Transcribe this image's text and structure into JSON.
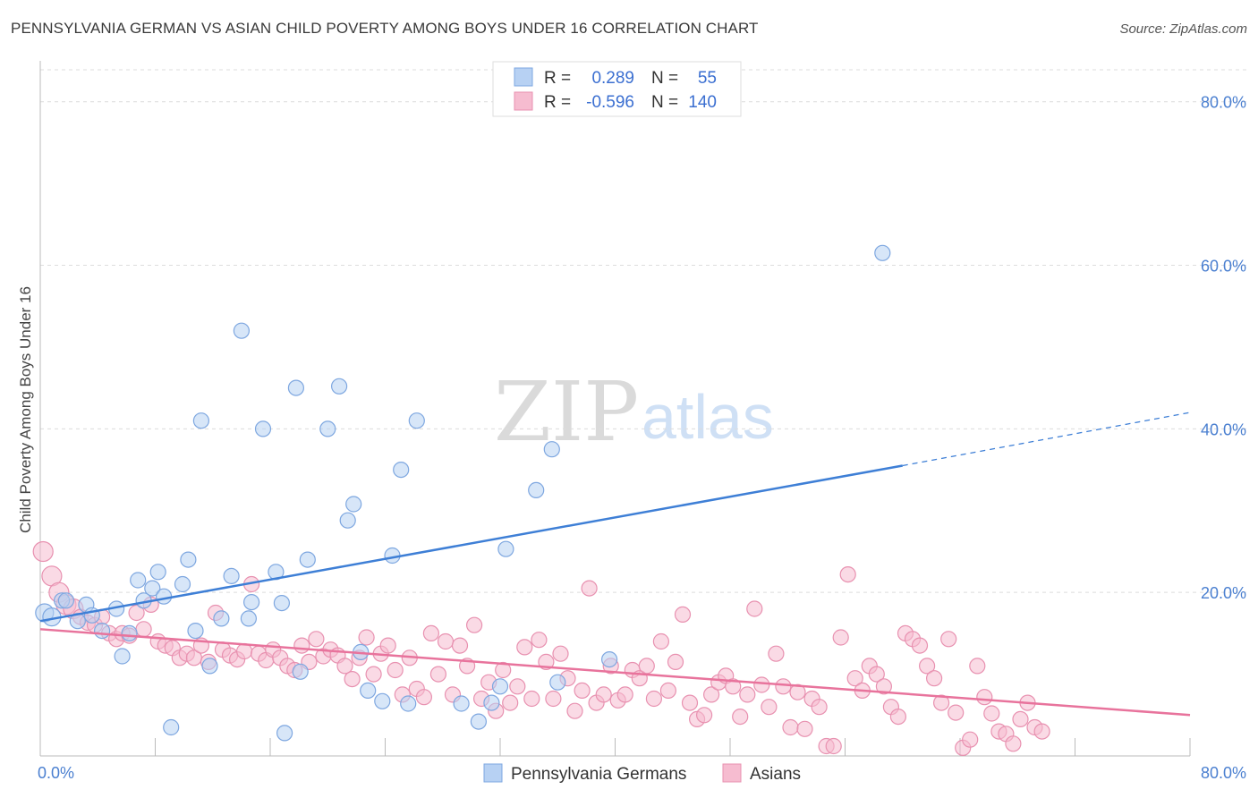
{
  "title": "PENNSYLVANIA GERMAN VS ASIAN CHILD POVERTY AMONG BOYS UNDER 16 CORRELATION CHART",
  "source": "Source: ZipAtlas.com",
  "watermark": {
    "zip": "ZIP",
    "atlas": "atlas"
  },
  "colors": {
    "blue": "#3e7fd6",
    "blue_fill": "#b7d1f3",
    "pink": "#e8739c",
    "pink_fill": "#f6bcd0",
    "tick": "#4a7fd0"
  },
  "legend": {
    "rows": [
      {
        "r_label": "R =",
        "r_value": "0.289",
        "n_label": "N =",
        "n_value": "55"
      },
      {
        "r_label": "R =",
        "r_value": "-0.596",
        "n_label": "N =",
        "n_value": "140"
      }
    ]
  },
  "bottom_legend": [
    "Pennsylvania Germans",
    "Asians"
  ],
  "chart_data": {
    "type": "scatter",
    "ylabel": "Child Poverty Among Boys Under 16",
    "xlim": [
      0,
      80
    ],
    "ylim": [
      0,
      85
    ],
    "x_ticks": [
      "0.0%",
      "80.0%"
    ],
    "y_ticks": [
      {
        "value": 20,
        "label": "20.0%"
      },
      {
        "value": 40,
        "label": "40.0%"
      },
      {
        "value": 60,
        "label": "60.0%"
      },
      {
        "value": 80,
        "label": "80.0%"
      }
    ],
    "grid": true,
    "series": [
      {
        "name": "Pennsylvania Germans",
        "trend": {
          "x0": 0,
          "y0": 16.5,
          "x1": 60,
          "y1": 35.5,
          "dash_x1": 80,
          "dash_y1": 42
        },
        "points": [
          [
            0.3,
            17.5
          ],
          [
            0.8,
            17
          ],
          [
            1.5,
            19
          ],
          [
            1.8,
            19
          ],
          [
            2.6,
            16.5
          ],
          [
            3.2,
            18.5
          ],
          [
            3.6,
            17.2
          ],
          [
            4.3,
            15.3
          ],
          [
            5.3,
            18
          ],
          [
            5.7,
            12.2
          ],
          [
            6.2,
            15
          ],
          [
            6.8,
            21.5
          ],
          [
            7.2,
            19
          ],
          [
            7.8,
            20.5
          ],
          [
            8.2,
            22.5
          ],
          [
            8.6,
            19.5
          ],
          [
            9.1,
            3.5
          ],
          [
            9.9,
            21
          ],
          [
            10.3,
            24
          ],
          [
            10.8,
            15.3
          ],
          [
            11.2,
            41
          ],
          [
            11.8,
            11
          ],
          [
            12.6,
            16.8
          ],
          [
            13.3,
            22
          ],
          [
            14.0,
            52
          ],
          [
            14.5,
            16.8
          ],
          [
            14.7,
            18.8
          ],
          [
            15.5,
            40
          ],
          [
            16.4,
            22.5
          ],
          [
            16.8,
            18.7
          ],
          [
            17.0,
            2.8
          ],
          [
            17.8,
            45
          ],
          [
            18.1,
            10.3
          ],
          [
            18.6,
            24
          ],
          [
            20.0,
            40
          ],
          [
            20.8,
            45.2
          ],
          [
            21.4,
            28.8
          ],
          [
            21.8,
            30.8
          ],
          [
            22.3,
            12.7
          ],
          [
            22.8,
            8
          ],
          [
            23.8,
            6.7
          ],
          [
            24.5,
            24.5
          ],
          [
            25.1,
            35
          ],
          [
            25.6,
            6.4
          ],
          [
            26.2,
            41
          ],
          [
            29.3,
            6.4
          ],
          [
            30.5,
            4.2
          ],
          [
            31.4,
            6.5
          ],
          [
            32.4,
            25.3
          ],
          [
            34.5,
            32.5
          ],
          [
            35.6,
            37.5
          ],
          [
            39.6,
            11.8
          ],
          [
            58.6,
            61.5
          ],
          [
            32.0,
            8.5
          ],
          [
            36.0,
            9.0
          ]
        ]
      },
      {
        "name": "Asians",
        "trend": {
          "x0": 0,
          "y0": 15.5,
          "x1": 80,
          "y1": 5.0
        },
        "points": [
          [
            0.2,
            25
          ],
          [
            0.8,
            22
          ],
          [
            1.3,
            20
          ],
          [
            1.8,
            18.5
          ],
          [
            2.3,
            18
          ],
          [
            2.8,
            17
          ],
          [
            3.3,
            16.3
          ],
          [
            3.8,
            16
          ],
          [
            4.3,
            17
          ],
          [
            4.8,
            15
          ],
          [
            5.3,
            14.3
          ],
          [
            5.7,
            15
          ],
          [
            6.2,
            14.7
          ],
          [
            6.7,
            17.5
          ],
          [
            7.2,
            15.5
          ],
          [
            7.7,
            18.5
          ],
          [
            8.2,
            14
          ],
          [
            8.7,
            13.5
          ],
          [
            9.2,
            13.2
          ],
          [
            9.7,
            12
          ],
          [
            10.2,
            12.5
          ],
          [
            10.7,
            12
          ],
          [
            11.2,
            13.5
          ],
          [
            11.7,
            11.5
          ],
          [
            12.2,
            17.5
          ],
          [
            12.7,
            13
          ],
          [
            13.2,
            12.3
          ],
          [
            13.7,
            11.8
          ],
          [
            14.2,
            12.8
          ],
          [
            14.7,
            21
          ],
          [
            15.2,
            12.5
          ],
          [
            15.7,
            11.7
          ],
          [
            16.2,
            13
          ],
          [
            16.7,
            12
          ],
          [
            17.2,
            11
          ],
          [
            17.7,
            10.5
          ],
          [
            18.2,
            13.5
          ],
          [
            18.7,
            11.5
          ],
          [
            19.2,
            14.3
          ],
          [
            19.7,
            12.2
          ],
          [
            20.2,
            13
          ],
          [
            20.7,
            12.3
          ],
          [
            21.2,
            11
          ],
          [
            21.7,
            9.4
          ],
          [
            22.2,
            12
          ],
          [
            22.7,
            14.5
          ],
          [
            23.2,
            10
          ],
          [
            23.7,
            12.5
          ],
          [
            24.2,
            13.5
          ],
          [
            24.7,
            10.5
          ],
          [
            25.2,
            7.5
          ],
          [
            25.7,
            12
          ],
          [
            26.2,
            8.2
          ],
          [
            26.7,
            7.2
          ],
          [
            27.2,
            15
          ],
          [
            27.7,
            10
          ],
          [
            28.2,
            14
          ],
          [
            28.7,
            7.5
          ],
          [
            29.2,
            13.5
          ],
          [
            29.7,
            11
          ],
          [
            30.2,
            16
          ],
          [
            30.7,
            7
          ],
          [
            31.2,
            9
          ],
          [
            31.7,
            5.5
          ],
          [
            32.2,
            10.5
          ],
          [
            32.7,
            6.5
          ],
          [
            33.2,
            8.5
          ],
          [
            33.7,
            13.3
          ],
          [
            34.2,
            7
          ],
          [
            34.7,
            14.2
          ],
          [
            35.2,
            11.5
          ],
          [
            35.7,
            7
          ],
          [
            36.2,
            12.5
          ],
          [
            36.7,
            9.5
          ],
          [
            37.2,
            5.5
          ],
          [
            37.7,
            8
          ],
          [
            38.2,
            20.5
          ],
          [
            38.7,
            6.5
          ],
          [
            39.2,
            7.5
          ],
          [
            39.7,
            11
          ],
          [
            40.2,
            6.8
          ],
          [
            40.7,
            7.5
          ],
          [
            41.2,
            10.5
          ],
          [
            41.7,
            9.5
          ],
          [
            42.2,
            11
          ],
          [
            42.7,
            7
          ],
          [
            43.2,
            14
          ],
          [
            43.7,
            8
          ],
          [
            44.2,
            11.5
          ],
          [
            44.7,
            17.3
          ],
          [
            45.2,
            6.5
          ],
          [
            45.7,
            4.5
          ],
          [
            46.2,
            5
          ],
          [
            46.7,
            7.5
          ],
          [
            47.2,
            9
          ],
          [
            47.7,
            9.8
          ],
          [
            48.2,
            8.5
          ],
          [
            48.7,
            4.8
          ],
          [
            49.2,
            7.5
          ],
          [
            49.7,
            18
          ],
          [
            50.2,
            8.7
          ],
          [
            50.7,
            6
          ],
          [
            51.2,
            12.5
          ],
          [
            51.7,
            8.5
          ],
          [
            52.2,
            3.5
          ],
          [
            52.7,
            7.8
          ],
          [
            53.2,
            3.3
          ],
          [
            53.7,
            7
          ],
          [
            54.2,
            6
          ],
          [
            54.7,
            1.2
          ],
          [
            55.2,
            1.2
          ],
          [
            55.7,
            14.5
          ],
          [
            56.2,
            22.2
          ],
          [
            56.7,
            9.5
          ],
          [
            57.2,
            8
          ],
          [
            57.7,
            11
          ],
          [
            58.2,
            10
          ],
          [
            58.7,
            8.5
          ],
          [
            59.2,
            6
          ],
          [
            59.7,
            4.8
          ],
          [
            60.2,
            15
          ],
          [
            60.7,
            14.3
          ],
          [
            61.2,
            13.5
          ],
          [
            61.7,
            11
          ],
          [
            62.2,
            9.5
          ],
          [
            62.7,
            6.5
          ],
          [
            63.2,
            14.3
          ],
          [
            63.7,
            5.3
          ],
          [
            64.2,
            1
          ],
          [
            64.7,
            2
          ],
          [
            65.2,
            11
          ],
          [
            65.7,
            7.2
          ],
          [
            66.2,
            5.2
          ],
          [
            66.7,
            3
          ],
          [
            67.2,
            2.7
          ],
          [
            67.7,
            1.5
          ],
          [
            68.2,
            4.5
          ],
          [
            68.7,
            6.5
          ],
          [
            69.2,
            3.5
          ],
          [
            69.7,
            3
          ]
        ]
      }
    ]
  }
}
